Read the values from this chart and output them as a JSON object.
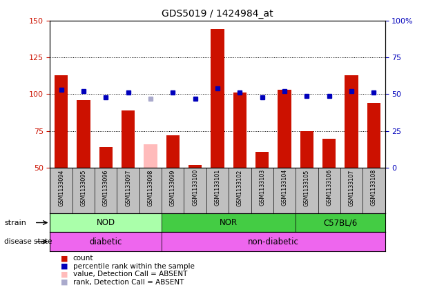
{
  "title": "GDS5019 / 1424984_at",
  "samples": [
    "GSM1133094",
    "GSM1133095",
    "GSM1133096",
    "GSM1133097",
    "GSM1133098",
    "GSM1133099",
    "GSM1133100",
    "GSM1133101",
    "GSM1133102",
    "GSM1133103",
    "GSM1133104",
    "GSM1133105",
    "GSM1133106",
    "GSM1133107",
    "GSM1133108"
  ],
  "counts": [
    113,
    96,
    64,
    89,
    66,
    72,
    52,
    144,
    101,
    61,
    103,
    75,
    70,
    113,
    94
  ],
  "absent_flags": [
    false,
    false,
    false,
    false,
    true,
    false,
    false,
    false,
    false,
    false,
    false,
    false,
    false,
    false,
    false
  ],
  "percentile_ranks": [
    53,
    52,
    48,
    51,
    47,
    51,
    47,
    54,
    51,
    48,
    52,
    49,
    49,
    52,
    51
  ],
  "rank_absent_flags": [
    false,
    false,
    false,
    false,
    true,
    false,
    false,
    false,
    false,
    false,
    false,
    false,
    false,
    false,
    false
  ],
  "ylim_left": [
    50,
    150
  ],
  "ylim_right": [
    0,
    100
  ],
  "yticks_left": [
    50,
    75,
    100,
    125,
    150
  ],
  "yticks_right": [
    0,
    25,
    50,
    75,
    100
  ],
  "ytick_labels_left": [
    "50",
    "75",
    "100",
    "125",
    "150"
  ],
  "ytick_labels_right": [
    "0",
    "25",
    "50",
    "75",
    "100%"
  ],
  "bar_color": "#cc1100",
  "bar_absent_color": "#ffbbbb",
  "dot_color": "#0000bb",
  "dot_absent_color": "#aaaacc",
  "grid_color": "#000000",
  "plot_bg": "#ffffff",
  "tick_area_bg": "#c0c0c0",
  "strain_nod_color": "#aaffaa",
  "strain_nor_color": "#44cc44",
  "strain_c57_color": "#44cc44",
  "disease_diabetic_color": "#ee66ee",
  "disease_nondiabetic_color": "#ee66ee",
  "strain_groups": [
    {
      "label": "NOD",
      "start": 0,
      "end": 4,
      "color": "#aaffaa"
    },
    {
      "label": "NOR",
      "start": 5,
      "end": 10,
      "color": "#44cc44"
    },
    {
      "label": "C57BL/6",
      "start": 11,
      "end": 14,
      "color": "#44cc44"
    }
  ],
  "disease_groups": [
    {
      "label": "diabetic",
      "start": 0,
      "end": 4,
      "color": "#ee66ee"
    },
    {
      "label": "non-diabetic",
      "start": 5,
      "end": 14,
      "color": "#ee66ee"
    }
  ],
  "legend_items": [
    {
      "label": "count",
      "color": "#cc1100"
    },
    {
      "label": "percentile rank within the sample",
      "color": "#0000bb"
    },
    {
      "label": "value, Detection Call = ABSENT",
      "color": "#ffbbbb"
    },
    {
      "label": "rank, Detection Call = ABSENT",
      "color": "#aaaacc"
    }
  ]
}
